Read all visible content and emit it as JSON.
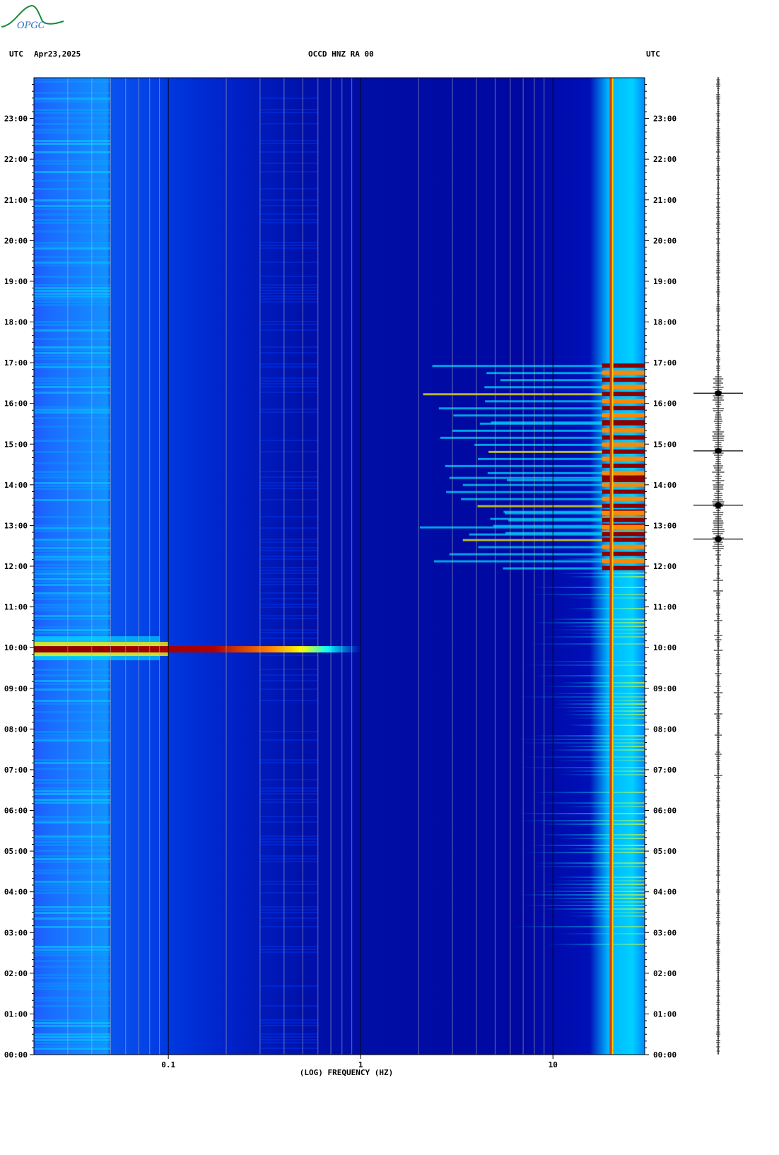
{
  "header": {
    "tz_left": "UTC",
    "date": "Apr23,2025",
    "station": "OCCD HNZ RA 00",
    "tz_right": "UTC"
  },
  "logo": {
    "text": "OPGC"
  },
  "chart_data": {
    "type": "heatmap",
    "title": "OCCD HNZ RA 00",
    "xlabel": "(LOG) FREQUENCY (HZ)",
    "ylabel": "UTC",
    "x_scale": "log",
    "xlim": [
      0.02,
      30
    ],
    "ylim": [
      "00:00",
      "24:00"
    ],
    "x_major_ticks": [
      0.1,
      1,
      10
    ],
    "x_tick_labels": [
      "0.1",
      "1",
      "10"
    ],
    "y_tick_labels": [
      "00:00",
      "01:00",
      "02:00",
      "03:00",
      "04:00",
      "05:00",
      "06:00",
      "07:00",
      "08:00",
      "09:00",
      "10:00",
      "11:00",
      "12:00",
      "13:00",
      "14:00",
      "15:00",
      "16:00",
      "17:00",
      "18:00",
      "19:00",
      "20:00",
      "21:00",
      "22:00",
      "23:00"
    ],
    "colormap": [
      "#00008b",
      "#0000ff",
      "#00aaff",
      "#00ffff",
      "#ffff00",
      "#ff8800",
      "#8b0000"
    ],
    "events": [
      {
        "time": "09:58",
        "f_min": 0.02,
        "f_max": 1.0,
        "level": "peak"
      },
      {
        "time": "12:40",
        "f_min": 2.0,
        "f_max": 30,
        "level": "high"
      },
      {
        "time": "13:30",
        "f_min": 2.0,
        "f_max": 30,
        "level": "high"
      },
      {
        "time": "14:50",
        "f_min": 2.0,
        "f_max": 30,
        "level": "high"
      },
      {
        "time": "16:15",
        "f_min": 2.0,
        "f_max": 30,
        "level": "high"
      }
    ],
    "persistent_line_hz": 20
  }
}
